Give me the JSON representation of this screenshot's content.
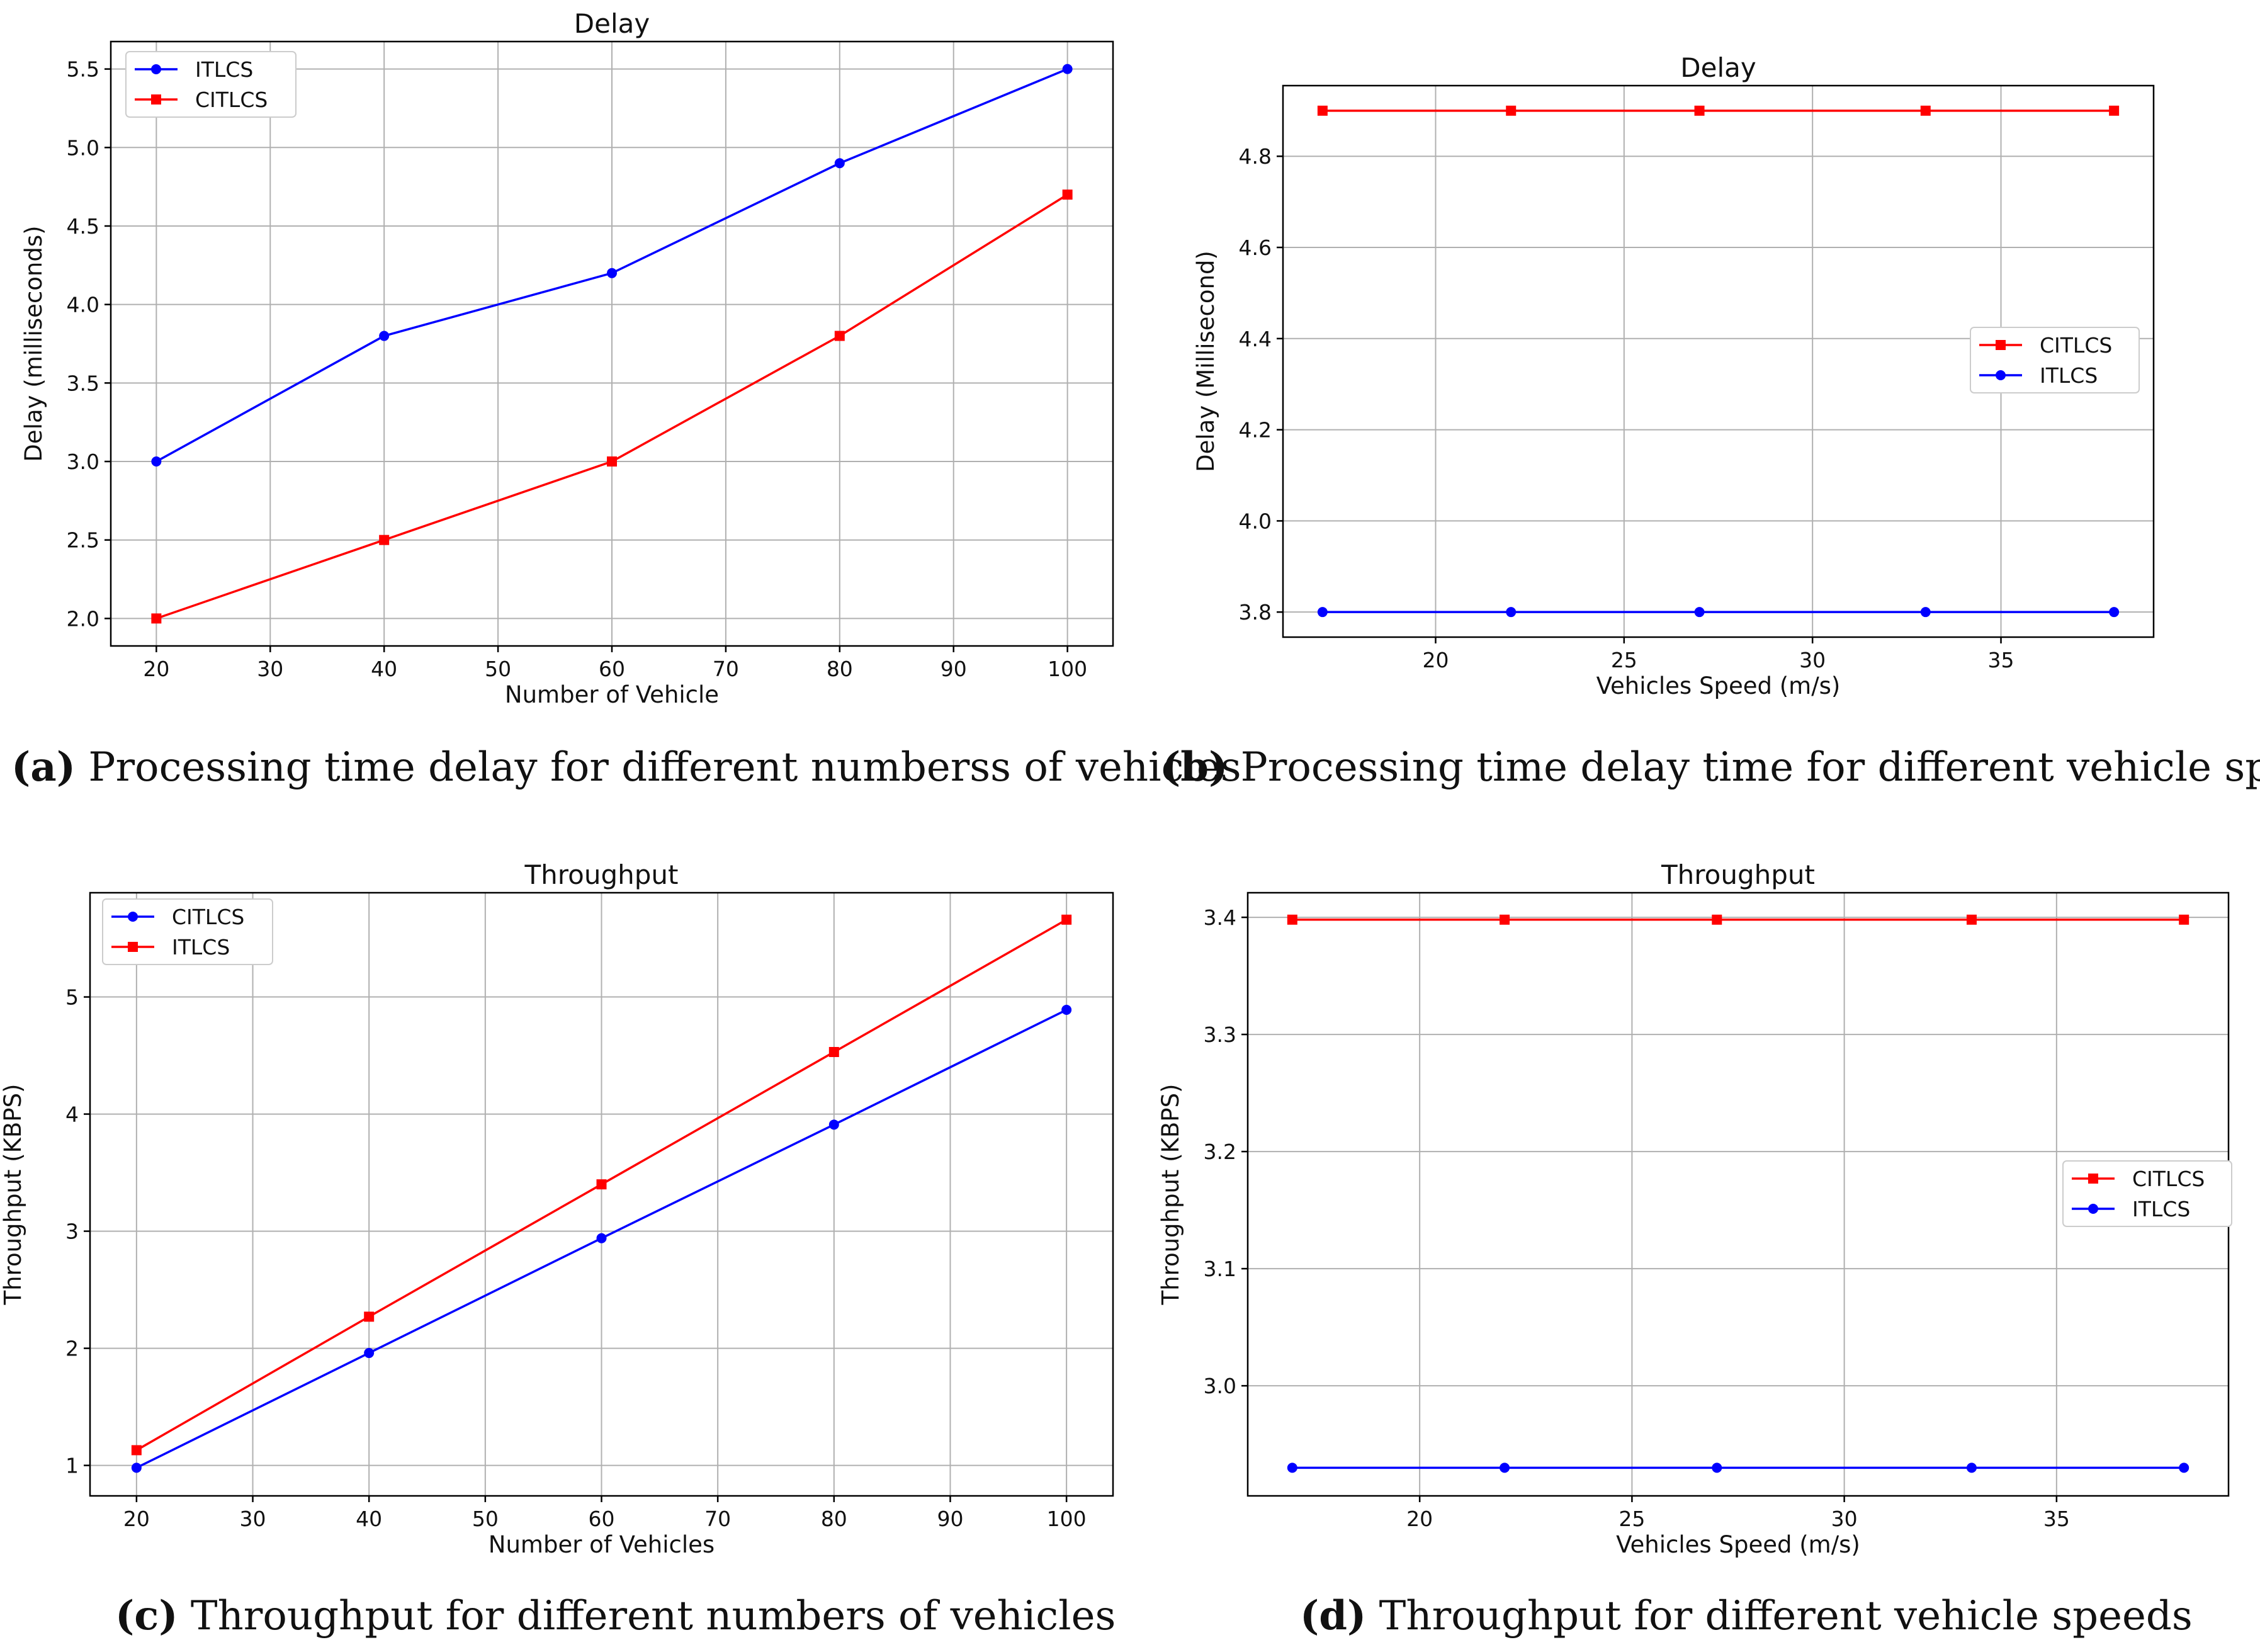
{
  "chart_data": [
    {
      "id": "a",
      "type": "line",
      "title": "Delay",
      "xlabel": "Number of Vehicle",
      "ylabel": "Delay (milliseconds)",
      "xlim": [
        16,
        104
      ],
      "ylim": [
        1.825,
        5.675
      ],
      "xticks": [
        20,
        30,
        40,
        50,
        60,
        70,
        80,
        90,
        100
      ],
      "yticks": [
        2.0,
        2.5,
        3.0,
        3.5,
        4.0,
        4.5,
        5.0,
        5.5
      ],
      "ytick_decimals": 1,
      "grid": true,
      "legend_position": "top-left",
      "x": [
        20,
        40,
        60,
        80,
        100
      ],
      "series": [
        {
          "name": "ITLCS",
          "color": "#0000ff",
          "marker": "circle",
          "values": [
            3.0,
            3.8,
            4.2,
            4.9,
            5.5
          ]
        },
        {
          "name": "CITLCS",
          "color": "#ff0000",
          "marker": "square",
          "values": [
            2.0,
            2.5,
            3.0,
            3.8,
            4.7
          ]
        }
      ],
      "caption_letter": "(a)",
      "caption_text": " Processing time delay for different numberss of vehicles"
    },
    {
      "id": "b",
      "type": "line",
      "title": "Delay",
      "xlabel": "Vehicles Speed (m/s)",
      "ylabel": "Delay (Millisecond)",
      "xlim": [
        15.95,
        39.05
      ],
      "ylim": [
        3.745,
        4.955
      ],
      "xticks": [
        20,
        25,
        30,
        35
      ],
      "yticks": [
        3.8,
        4.0,
        4.2,
        4.4,
        4.6,
        4.8
      ],
      "ytick_decimals": 1,
      "grid": true,
      "legend_position": "center-right",
      "x": [
        17,
        22,
        27,
        33,
        38
      ],
      "series": [
        {
          "name": "CITLCS",
          "color": "#ff0000",
          "marker": "square",
          "values": [
            4.9,
            4.9,
            4.9,
            4.9,
            4.9
          ]
        },
        {
          "name": "ITLCS",
          "color": "#0000ff",
          "marker": "circle",
          "values": [
            3.8,
            3.8,
            3.8,
            3.8,
            3.8
          ]
        }
      ],
      "caption_letter": "(b)",
      "caption_text": " Processing time delay time for different vehicle speeds"
    },
    {
      "id": "c",
      "type": "line",
      "title": "Throughput",
      "xlabel": "Number of Vehicles",
      "ylabel": "Throughput (KBPS)",
      "xlim": [
        16,
        104
      ],
      "ylim": [
        0.74,
        5.89
      ],
      "xticks": [
        20,
        30,
        40,
        50,
        60,
        70,
        80,
        90,
        100
      ],
      "yticks": [
        1,
        2,
        3,
        4,
        5
      ],
      "ytick_decimals": 0,
      "grid": true,
      "legend_position": "top-left",
      "x": [
        20,
        40,
        60,
        80,
        100
      ],
      "series": [
        {
          "name": "CITLCS",
          "color": "#0000ff",
          "marker": "circle",
          "values": [
            0.98,
            1.96,
            2.94,
            3.91,
            4.89
          ]
        },
        {
          "name": "ITLCS",
          "color": "#ff0000",
          "marker": "square",
          "values": [
            1.13,
            2.27,
            3.4,
            4.53,
            5.66
          ]
        }
      ],
      "caption_letter": "(c)",
      "caption_text": " Throughput for different numbers of vehicles"
    },
    {
      "id": "d",
      "type": "line",
      "title": "Throughput",
      "xlabel": "Vehicles Speed (m/s)",
      "ylabel": "Throughput (KBPS)",
      "xlim": [
        15.95,
        39.05
      ],
      "ylim": [
        2.906,
        3.421
      ],
      "xticks": [
        20,
        25,
        30,
        35
      ],
      "yticks": [
        3.0,
        3.1,
        3.2,
        3.3,
        3.4
      ],
      "ytick_decimals": 1,
      "grid": true,
      "legend_position": "center-right",
      "x": [
        17,
        22,
        27,
        33,
        38
      ],
      "series": [
        {
          "name": "CITLCS",
          "color": "#ff0000",
          "marker": "square",
          "values": [
            3.398,
            3.398,
            3.398,
            3.398,
            3.398
          ]
        },
        {
          "name": "ITLCS",
          "color": "#0000ff",
          "marker": "circle",
          "values": [
            2.93,
            2.93,
            2.93,
            2.93,
            2.93
          ]
        }
      ],
      "caption_letter": "(d)",
      "caption_text": " Throughput for different vehicle speeds"
    }
  ]
}
